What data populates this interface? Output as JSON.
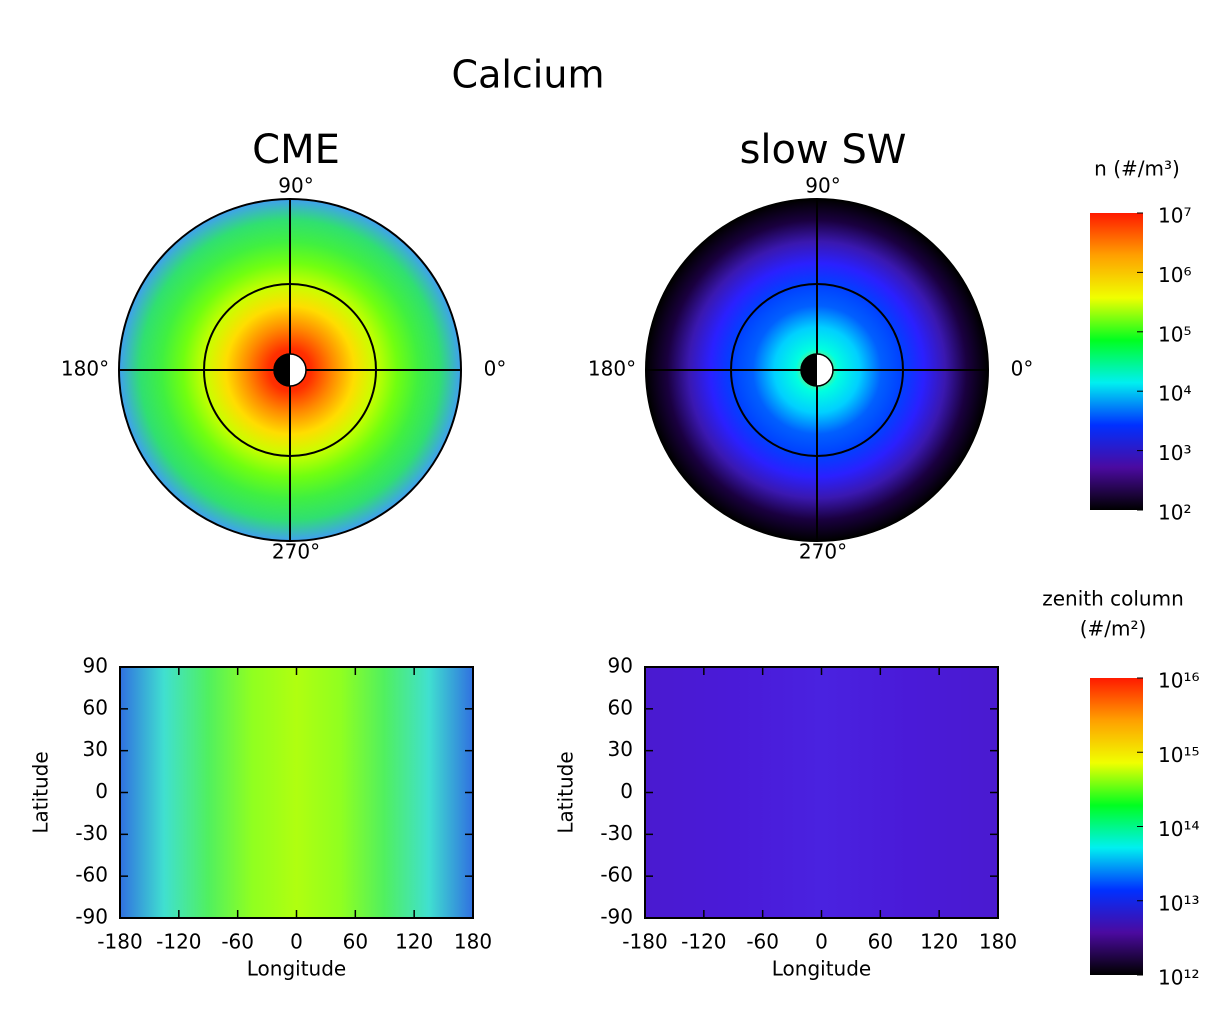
{
  "title": "Calcium",
  "chart_data": [
    {
      "type": "polar",
      "title": "CME",
      "angle_ticks": [
        {
          "value": 90,
          "label": "90°"
        },
        {
          "value": 180,
          "label": "180°"
        },
        {
          "value": 270,
          "label": "270°"
        },
        {
          "value": 0,
          "label": "0°"
        }
      ],
      "colors": [
        "#ff1a00",
        "#ff3000",
        "#ff8a00",
        "#ffdd00",
        "#c8ff00",
        "#70ff10",
        "#40f040",
        "#30e070",
        "#40a0f0"
      ]
    },
    {
      "type": "polar",
      "title": "slow SW",
      "angle_ticks": [
        {
          "value": 90,
          "label": "90°"
        },
        {
          "value": 180,
          "label": "180°"
        },
        {
          "value": 270,
          "label": "270°"
        },
        {
          "value": 0,
          "label": "0°"
        }
      ],
      "colors": [
        "#ffd000",
        "#00ffe0",
        "#00d0ff",
        "#0060ff",
        "#0040ff",
        "#2a20ff",
        "#3a18b0",
        "#1a0040",
        "#000000"
      ]
    },
    {
      "type": "colorbar",
      "label": [
        "n (#/m³)"
      ],
      "log": true,
      "ylim": [
        100,
        10000000
      ],
      "yticks": [
        {
          "value": 100,
          "label": "10²"
        },
        {
          "value": 1000,
          "label": "10³"
        },
        {
          "value": 10000,
          "label": "10⁴"
        },
        {
          "value": 100000,
          "label": "10⁵"
        },
        {
          "value": 1000000,
          "label": "10⁶"
        },
        {
          "value": 10000000,
          "label": "10⁷"
        }
      ],
      "colors": [
        "#000000",
        "#4b0aa0",
        "#0030ff",
        "#00f0f0",
        "#00ff20",
        "#f0ff00",
        "#ffa000",
        "#ff1a00"
      ]
    },
    {
      "type": "heatmap",
      "xlabel": "Longitude",
      "ylabel": "Latitude",
      "xlim": [
        -180,
        180
      ],
      "xticks": [
        -180,
        -120,
        -60,
        0,
        60,
        120,
        180
      ],
      "ylim": [
        -90,
        90
      ],
      "yticks": [
        -90,
        -60,
        -30,
        0,
        30,
        60,
        90
      ],
      "colors": [
        "#3070e0",
        "#40e0d0",
        "#50f060",
        "#90ff20",
        "#b0ff10",
        "#90ff20",
        "#50f060",
        "#40e0d0",
        "#3070e0"
      ]
    },
    {
      "type": "heatmap",
      "xlabel": "Longitude",
      "ylabel": "Latitude",
      "xlim": [
        -180,
        180
      ],
      "xticks": [
        -180,
        -120,
        -60,
        0,
        60,
        120,
        180
      ],
      "ylim": [
        -90,
        90
      ],
      "yticks": [
        -90,
        -60,
        -30,
        0,
        30,
        60,
        90
      ],
      "colors": [
        "#4a1ad0",
        "#4a1ad8",
        "#4a22e0",
        "#4a1ad8",
        "#4a1ad0"
      ]
    },
    {
      "type": "colorbar",
      "label": [
        "zenith column",
        "(#/m²)"
      ],
      "log": true,
      "ylim": [
        1000000000000,
        10000000000000000
      ],
      "yticks": [
        {
          "value": 1000000000000,
          "label": "10¹²"
        },
        {
          "value": 10000000000000,
          "label": "10¹³"
        },
        {
          "value": 100000000000000,
          "label": "10¹⁴"
        },
        {
          "value": 1000000000000000,
          "label": "10¹⁵"
        },
        {
          "value": 10000000000000000,
          "label": "10¹⁶"
        }
      ],
      "colors": [
        "#000000",
        "#4b0aa0",
        "#0030ff",
        "#00f0f0",
        "#00ff20",
        "#f0ff00",
        "#ffa000",
        "#ff1a00"
      ]
    }
  ]
}
